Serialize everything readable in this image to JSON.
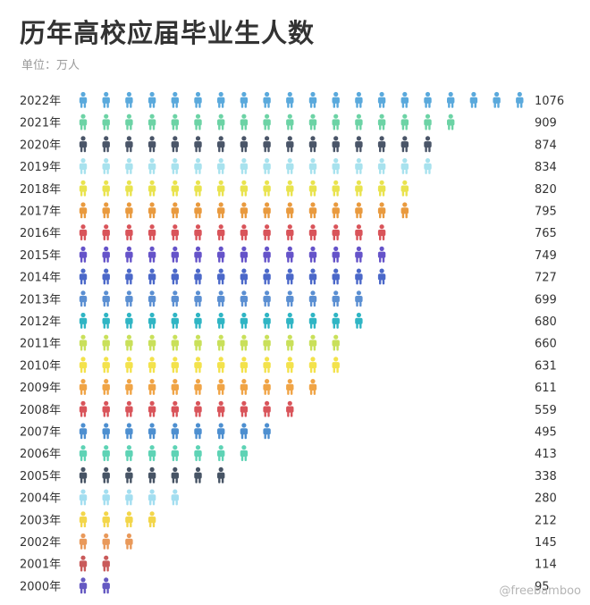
{
  "title": "历年高校应届毕业生人数",
  "subtitle": "单位：万人",
  "watermark": "@freebamboo",
  "chart_data": {
    "type": "pictogram",
    "unit": "万人",
    "categories": [
      "2022年",
      "2021年",
      "2020年",
      "2019年",
      "2018年",
      "2017年",
      "2016年",
      "2015年",
      "2014年",
      "2013年",
      "2012年",
      "2011年",
      "2010年",
      "2009年",
      "2008年",
      "2007年",
      "2006年",
      "2005年",
      "2004年",
      "2003年",
      "2002年",
      "2001年",
      "2000年"
    ],
    "values": [
      1076,
      909,
      874,
      834,
      820,
      795,
      765,
      749,
      727,
      699,
      680,
      660,
      631,
      611,
      559,
      495,
      413,
      338,
      280,
      212,
      145,
      114,
      95
    ],
    "value_labels": [
      "1076",
      "909",
      "874",
      "834",
      "820",
      "795",
      "765",
      "749",
      "727",
      "699",
      "680",
      "660",
      "631",
      "611",
      "559",
      "495",
      "413",
      "338",
      "280",
      "212",
      "145",
      "114",
      "95"
    ],
    "colors": [
      "#5aa9dc",
      "#6cd3a5",
      "#4a5568",
      "#a8e2ee",
      "#e9e34e",
      "#e99a3e",
      "#d9545a",
      "#6553c9",
      "#4b68c9",
      "#5b8fd2",
      "#2fb5c4",
      "#c9e05a",
      "#f3e24c",
      "#f0a446",
      "#d9545a",
      "#4d8fd0",
      "#5ed3b5",
      "#475465",
      "#a3def0",
      "#f3d64a",
      "#e9995a",
      "#c95a5a",
      "#6559c2"
    ],
    "icons_per_row": [
      20,
      17,
      16,
      16,
      15,
      15,
      14,
      14,
      14,
      13,
      13,
      12,
      12,
      11,
      10,
      9,
      8,
      7,
      5,
      4,
      3,
      2,
      2
    ],
    "icon": "person-icon"
  }
}
